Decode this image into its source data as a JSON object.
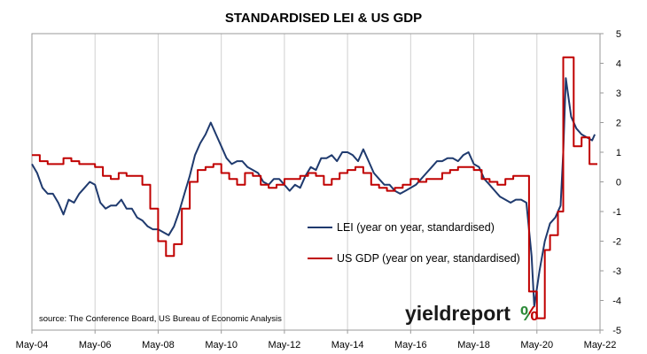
{
  "chart_data": {
    "type": "line",
    "title": "STANDARDISED LEI & US GDP",
    "source": "source: The Conference Board, US Bureau of Economic Analysis",
    "logo": {
      "text": "yieldreport",
      "symbol": "%"
    },
    "x_ticks": [
      "May-04",
      "May-06",
      "May-08",
      "May-10",
      "May-12",
      "May-14",
      "May-16",
      "May-18",
      "May-20",
      "May-22"
    ],
    "ylim": [
      -5,
      5
    ],
    "y_ticks": [
      5,
      4,
      3,
      2,
      1,
      0,
      -1,
      -2,
      -3,
      -4,
      -5
    ],
    "y_axis_side": "right",
    "grid": {
      "vertical": true,
      "horizontal": false
    },
    "legend": {
      "placement": "center-right"
    },
    "colors": {
      "lei": "#1f3a6e",
      "gdp": "#c00000"
    },
    "series": [
      {
        "name": "LEI (year on year, standardised)",
        "points": [
          [
            "May-04",
            0.6
          ],
          [
            "Jul-04",
            0.3
          ],
          [
            "Sep-04",
            -0.2
          ],
          [
            "Nov-04",
            -0.4
          ],
          [
            "Jan-05",
            -0.4
          ],
          [
            "Mar-05",
            -0.7
          ],
          [
            "May-05",
            -1.1
          ],
          [
            "Jul-05",
            -0.6
          ],
          [
            "Sep-05",
            -0.7
          ],
          [
            "Nov-05",
            -0.4
          ],
          [
            "Jan-06",
            -0.2
          ],
          [
            "Mar-06",
            0.0
          ],
          [
            "May-06",
            -0.1
          ],
          [
            "Jul-06",
            -0.7
          ],
          [
            "Sep-06",
            -0.9
          ],
          [
            "Nov-06",
            -0.8
          ],
          [
            "Jan-07",
            -0.8
          ],
          [
            "Mar-07",
            -0.6
          ],
          [
            "May-07",
            -0.9
          ],
          [
            "Jul-07",
            -0.9
          ],
          [
            "Sep-07",
            -1.2
          ],
          [
            "Nov-07",
            -1.3
          ],
          [
            "Jan-08",
            -1.5
          ],
          [
            "Mar-08",
            -1.6
          ],
          [
            "May-08",
            -1.6
          ],
          [
            "Jul-08",
            -1.7
          ],
          [
            "Sep-08",
            -1.8
          ],
          [
            "Nov-08",
            -1.5
          ],
          [
            "Jan-09",
            -1.0
          ],
          [
            "Mar-09",
            -0.4
          ],
          [
            "May-09",
            0.2
          ],
          [
            "Jul-09",
            0.9
          ],
          [
            "Sep-09",
            1.3
          ],
          [
            "Nov-09",
            1.6
          ],
          [
            "Jan-10",
            2.0
          ],
          [
            "Mar-10",
            1.6
          ],
          [
            "May-10",
            1.2
          ],
          [
            "Jul-10",
            0.8
          ],
          [
            "Sep-10",
            0.6
          ],
          [
            "Nov-10",
            0.7
          ],
          [
            "Jan-11",
            0.7
          ],
          [
            "Mar-11",
            0.5
          ],
          [
            "May-11",
            0.4
          ],
          [
            "Jul-11",
            0.3
          ],
          [
            "Sep-11",
            0.0
          ],
          [
            "Nov-11",
            -0.1
          ],
          [
            "Jan-12",
            0.1
          ],
          [
            "Mar-12",
            0.1
          ],
          [
            "May-12",
            -0.1
          ],
          [
            "Jul-12",
            -0.3
          ],
          [
            "Sep-12",
            -0.1
          ],
          [
            "Nov-12",
            -0.2
          ],
          [
            "Jan-13",
            0.2
          ],
          [
            "Mar-13",
            0.5
          ],
          [
            "May-13",
            0.4
          ],
          [
            "Jul-13",
            0.8
          ],
          [
            "Sep-13",
            0.8
          ],
          [
            "Nov-13",
            0.9
          ],
          [
            "Jan-14",
            0.7
          ],
          [
            "Mar-14",
            1.0
          ],
          [
            "May-14",
            1.0
          ],
          [
            "Jul-14",
            0.9
          ],
          [
            "Sep-14",
            0.7
          ],
          [
            "Nov-14",
            1.1
          ],
          [
            "Jan-15",
            0.7
          ],
          [
            "Mar-15",
            0.3
          ],
          [
            "May-15",
            0.1
          ],
          [
            "Jul-15",
            -0.1
          ],
          [
            "Sep-15",
            -0.1
          ],
          [
            "Nov-15",
            -0.3
          ],
          [
            "Jan-16",
            -0.4
          ],
          [
            "Mar-16",
            -0.3
          ],
          [
            "May-16",
            -0.2
          ],
          [
            "Jul-16",
            -0.1
          ],
          [
            "Sep-16",
            0.1
          ],
          [
            "Nov-16",
            0.3
          ],
          [
            "Jan-17",
            0.5
          ],
          [
            "Mar-17",
            0.7
          ],
          [
            "May-17",
            0.7
          ],
          [
            "Jul-17",
            0.8
          ],
          [
            "Sep-17",
            0.8
          ],
          [
            "Nov-17",
            0.7
          ],
          [
            "Jan-18",
            0.9
          ],
          [
            "Mar-18",
            1.0
          ],
          [
            "May-18",
            0.6
          ],
          [
            "Jul-18",
            0.5
          ],
          [
            "Sep-18",
            0.1
          ],
          [
            "Nov-18",
            -0.1
          ],
          [
            "Jan-19",
            -0.3
          ],
          [
            "Mar-19",
            -0.5
          ],
          [
            "May-19",
            -0.6
          ],
          [
            "Jul-19",
            -0.7
          ],
          [
            "Sep-19",
            -0.6
          ],
          [
            "Nov-19",
            -0.6
          ],
          [
            "Jan-20",
            -0.7
          ],
          [
            "Mar-20",
            -2.5
          ],
          [
            "Apr-20",
            -4.2
          ],
          [
            "Jun-20",
            -3.0
          ],
          [
            "Aug-20",
            -2.0
          ],
          [
            "Oct-20",
            -1.4
          ],
          [
            "Dec-20",
            -1.2
          ],
          [
            "Feb-21",
            -0.8
          ],
          [
            "Mar-21",
            1.0
          ],
          [
            "Apr-21",
            3.5
          ],
          [
            "Jun-21",
            2.2
          ],
          [
            "Aug-21",
            1.8
          ],
          [
            "Oct-21",
            1.6
          ],
          [
            "Dec-21",
            1.5
          ],
          [
            "Feb-22",
            1.4
          ],
          [
            "Mar-22",
            1.6
          ]
        ]
      },
      {
        "name": "US GDP (year on year, standardised)",
        "points": [
          [
            "May-04",
            0.9
          ],
          [
            "Aug-04",
            0.9
          ],
          [
            "Aug-04",
            0.7
          ],
          [
            "Nov-04",
            0.7
          ],
          [
            "Nov-04",
            0.6
          ],
          [
            "Feb-05",
            0.6
          ],
          [
            "Feb-05",
            0.6
          ],
          [
            "May-05",
            0.6
          ],
          [
            "May-05",
            0.8
          ],
          [
            "Aug-05",
            0.8
          ],
          [
            "Aug-05",
            0.7
          ],
          [
            "Nov-05",
            0.7
          ],
          [
            "Nov-05",
            0.6
          ],
          [
            "Feb-06",
            0.6
          ],
          [
            "Feb-06",
            0.6
          ],
          [
            "May-06",
            0.6
          ],
          [
            "May-06",
            0.5
          ],
          [
            "Aug-06",
            0.5
          ],
          [
            "Aug-06",
            0.2
          ],
          [
            "Nov-06",
            0.2
          ],
          [
            "Nov-06",
            0.1
          ],
          [
            "Feb-07",
            0.1
          ],
          [
            "Feb-07",
            0.3
          ],
          [
            "May-07",
            0.3
          ],
          [
            "May-07",
            0.2
          ],
          [
            "Aug-07",
            0.2
          ],
          [
            "Aug-07",
            0.2
          ],
          [
            "Nov-07",
            0.2
          ],
          [
            "Nov-07",
            -0.1
          ],
          [
            "Feb-08",
            -0.1
          ],
          [
            "Feb-08",
            -0.9
          ],
          [
            "May-08",
            -0.9
          ],
          [
            "May-08",
            -2.0
          ],
          [
            "Aug-08",
            -2.0
          ],
          [
            "Aug-08",
            -2.5
          ],
          [
            "Nov-08",
            -2.5
          ],
          [
            "Nov-08",
            -2.1
          ],
          [
            "Feb-09",
            -2.1
          ],
          [
            "Feb-09",
            -0.9
          ],
          [
            "May-09",
            -0.9
          ],
          [
            "May-09",
            0.0
          ],
          [
            "Aug-09",
            0.0
          ],
          [
            "Aug-09",
            0.4
          ],
          [
            "Nov-09",
            0.4
          ],
          [
            "Nov-09",
            0.5
          ],
          [
            "Feb-10",
            0.5
          ],
          [
            "Feb-10",
            0.6
          ],
          [
            "May-10",
            0.6
          ],
          [
            "May-10",
            0.3
          ],
          [
            "Aug-10",
            0.3
          ],
          [
            "Aug-10",
            0.1
          ],
          [
            "Nov-10",
            0.1
          ],
          [
            "Nov-10",
            -0.1
          ],
          [
            "Feb-11",
            -0.1
          ],
          [
            "Feb-11",
            0.3
          ],
          [
            "May-11",
            0.3
          ],
          [
            "May-11",
            0.2
          ],
          [
            "Aug-11",
            0.2
          ],
          [
            "Aug-11",
            -0.1
          ],
          [
            "Nov-11",
            -0.1
          ],
          [
            "Nov-11",
            -0.2
          ],
          [
            "Feb-12",
            -0.2
          ],
          [
            "Feb-12",
            -0.1
          ],
          [
            "May-12",
            -0.1
          ],
          [
            "May-12",
            0.1
          ],
          [
            "Aug-12",
            0.1
          ],
          [
            "Aug-12",
            0.1
          ],
          [
            "Nov-12",
            0.1
          ],
          [
            "Nov-12",
            0.2
          ],
          [
            "Feb-13",
            0.2
          ],
          [
            "Feb-13",
            0.3
          ],
          [
            "May-13",
            0.3
          ],
          [
            "May-13",
            0.2
          ],
          [
            "Aug-13",
            0.2
          ],
          [
            "Aug-13",
            -0.1
          ],
          [
            "Nov-13",
            -0.1
          ],
          [
            "Nov-13",
            0.1
          ],
          [
            "Feb-14",
            0.1
          ],
          [
            "Feb-14",
            0.3
          ],
          [
            "May-14",
            0.3
          ],
          [
            "May-14",
            0.4
          ],
          [
            "Aug-14",
            0.4
          ],
          [
            "Aug-14",
            0.5
          ],
          [
            "Nov-14",
            0.5
          ],
          [
            "Nov-14",
            0.3
          ],
          [
            "Feb-15",
            0.3
          ],
          [
            "Feb-15",
            -0.1
          ],
          [
            "May-15",
            -0.1
          ],
          [
            "May-15",
            -0.2
          ],
          [
            "Aug-15",
            -0.2
          ],
          [
            "Aug-15",
            -0.3
          ],
          [
            "Nov-15",
            -0.3
          ],
          [
            "Nov-15",
            -0.2
          ],
          [
            "Feb-16",
            -0.2
          ],
          [
            "Feb-16",
            -0.1
          ],
          [
            "May-16",
            -0.1
          ],
          [
            "May-16",
            0.1
          ],
          [
            "Aug-16",
            0.1
          ],
          [
            "Aug-16",
            0.0
          ],
          [
            "Nov-16",
            0.0
          ],
          [
            "Nov-16",
            0.1
          ],
          [
            "Feb-17",
            0.1
          ],
          [
            "Feb-17",
            0.1
          ],
          [
            "May-17",
            0.1
          ],
          [
            "May-17",
            0.3
          ],
          [
            "Aug-17",
            0.3
          ],
          [
            "Aug-17",
            0.4
          ],
          [
            "Nov-17",
            0.4
          ],
          [
            "Nov-17",
            0.5
          ],
          [
            "Feb-18",
            0.5
          ],
          [
            "Feb-18",
            0.5
          ],
          [
            "May-18",
            0.5
          ],
          [
            "May-18",
            0.4
          ],
          [
            "Aug-18",
            0.4
          ],
          [
            "Aug-18",
            0.1
          ],
          [
            "Nov-18",
            0.1
          ],
          [
            "Nov-18",
            0.0
          ],
          [
            "Feb-19",
            0.0
          ],
          [
            "Feb-19",
            -0.1
          ],
          [
            "May-19",
            -0.1
          ],
          [
            "May-19",
            0.1
          ],
          [
            "Aug-19",
            0.1
          ],
          [
            "Aug-19",
            0.2
          ],
          [
            "Nov-19",
            0.2
          ],
          [
            "Nov-19",
            0.2
          ],
          [
            "Feb-20",
            0.2
          ],
          [
            "Feb-20",
            -3.7
          ],
          [
            "May-20",
            -3.7
          ],
          [
            "May-20",
            -4.6
          ],
          [
            "Aug-20",
            -4.6
          ],
          [
            "Aug-20",
            -2.3
          ],
          [
            "Oct-20",
            -2.3
          ],
          [
            "Oct-20",
            -1.8
          ],
          [
            "Jan-21",
            -1.8
          ],
          [
            "Jan-21",
            -1.0
          ],
          [
            "Mar-21",
            -1.0
          ],
          [
            "Mar-21",
            4.2
          ],
          [
            "Jul-21",
            4.2
          ],
          [
            "Jul-21",
            1.2
          ],
          [
            "Oct-21",
            1.2
          ],
          [
            "Oct-21",
            1.5
          ],
          [
            "Jan-22",
            1.5
          ],
          [
            "Jan-22",
            0.6
          ],
          [
            "Apr-22",
            0.6
          ]
        ]
      }
    ]
  }
}
